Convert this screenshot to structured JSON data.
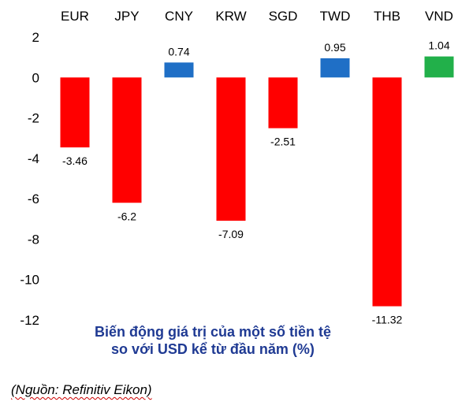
{
  "chart_data": {
    "type": "bar",
    "categories": [
      "EUR",
      "JPY",
      "CNY",
      "KRW",
      "SGD",
      "TWD",
      "THB",
      "VND"
    ],
    "values": [
      -3.46,
      -6.2,
      0.74,
      -7.09,
      -2.51,
      0.95,
      -11.32,
      1.04
    ],
    "value_labels": [
      "-3.46",
      "-6.2",
      "0.74",
      "-7.09",
      "-2.51",
      "0.95",
      "-11.32",
      "1.04"
    ],
    "bar_colors": [
      "#ff0000",
      "#ff0000",
      "#1f6fc6",
      "#ff0000",
      "#ff0000",
      "#1f6fc6",
      "#ff0000",
      "#22b04a"
    ],
    "ylim": [
      -12,
      2
    ],
    "yticks": [
      2,
      0,
      -2,
      -4,
      -6,
      -8,
      -10,
      -12
    ],
    "grid": false,
    "legend": "none",
    "caption_line1": "Biến động giá trị của một số tiền tệ",
    "caption_line2": "so với USD kể từ đầu năm (%)",
    "source": "(Nguồn: Refinitiv Eikon)"
  }
}
